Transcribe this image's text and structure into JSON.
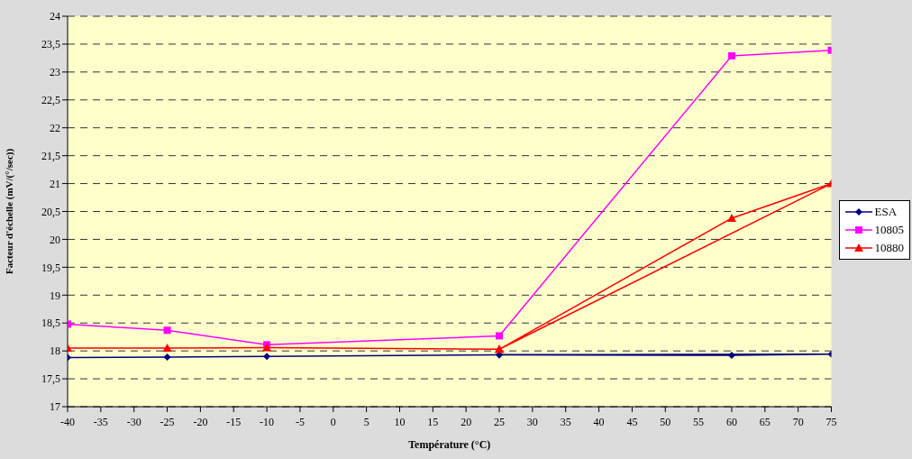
{
  "chart_data": {
    "type": "line",
    "xlabel": "Température (°C)",
    "ylabel": "Facteur d'échelle (mV/(°/sec))",
    "xlim": [
      -40,
      75
    ],
    "xticks": [
      -40,
      -35,
      -30,
      -25,
      -20,
      -15,
      -10,
      -5,
      0,
      5,
      10,
      15,
      20,
      25,
      30,
      35,
      40,
      45,
      50,
      55,
      60,
      65,
      70,
      75
    ],
    "ylim": [
      17,
      24
    ],
    "yticks": [
      17,
      {
        "value": 17.5,
        "label": "17,5"
      },
      18,
      {
        "value": 18.5,
        "label": "18,5"
      },
      19,
      {
        "value": 19.5,
        "label": "19,5"
      },
      20,
      {
        "value": 20.5,
        "label": "20,5"
      },
      21,
      {
        "value": 21.5,
        "label": "21,5"
      },
      22,
      {
        "value": 22.5,
        "label": "22,5"
      },
      23,
      {
        "value": 23.5,
        "label": "23,5"
      },
      24
    ],
    "grid": "y",
    "legend": "right",
    "line_style": "solid",
    "series": [
      {
        "name": "ESA",
        "color": "#000080",
        "marker": "diamond",
        "x": [
          -40,
          -25,
          -10,
          25,
          60,
          75,
          25
        ],
        "values": [
          17.88,
          17.89,
          17.9,
          17.93,
          17.92,
          17.94,
          17.93
        ]
      },
      {
        "name": "10805",
        "color": "#ff00ff",
        "marker": "square",
        "x": [
          -40,
          -25,
          -10,
          25,
          60,
          75
        ],
        "values": [
          18.48,
          18.37,
          18.11,
          18.27,
          23.29,
          23.39
        ]
      },
      {
        "name": "10880",
        "color": "#ff0000",
        "marker": "triangle",
        "x": [
          -40,
          -25,
          -10,
          25,
          60,
          75,
          25
        ],
        "values": [
          18.05,
          18.05,
          18.06,
          18.03,
          20.38,
          21.0,
          18.03
        ]
      }
    ]
  }
}
